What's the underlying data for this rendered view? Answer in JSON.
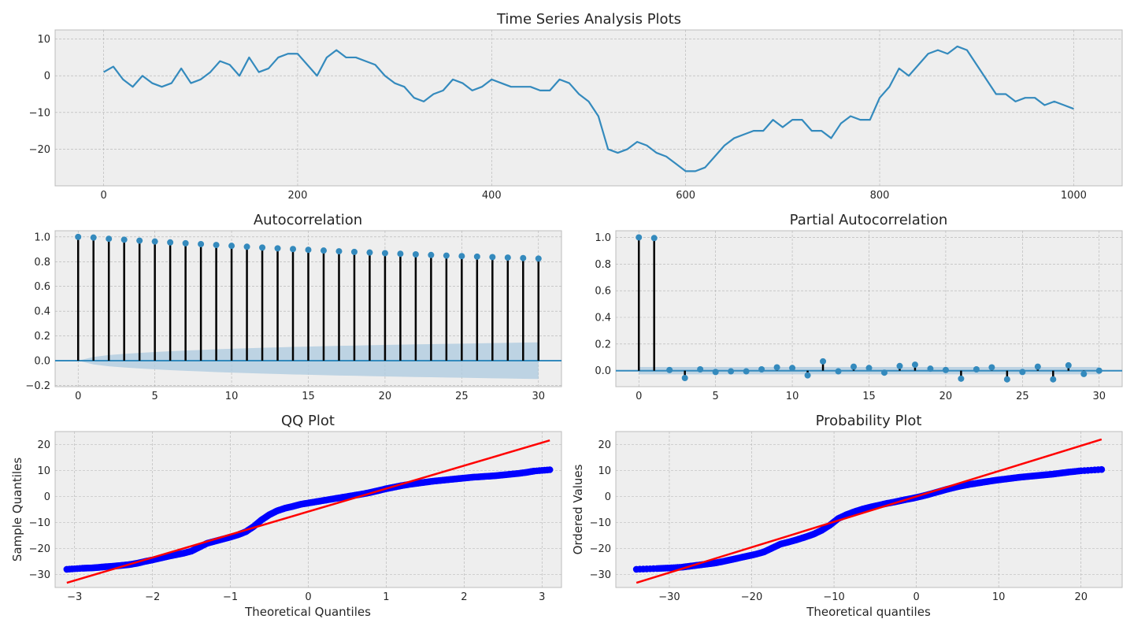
{
  "figure_title": "Time Series Analysis Plots",
  "chart_data": [
    {
      "id": "ts",
      "type": "line",
      "title": "",
      "xlabel": "",
      "ylabel": "",
      "xlim": [
        -50,
        1050
      ],
      "ylim": [
        -30,
        12.5
      ],
      "xticks": [
        0,
        200,
        400,
        600,
        800,
        1000
      ],
      "yticks": [
        -20,
        -10,
        0,
        10
      ],
      "grid": true,
      "color": "#348abd",
      "series": [
        {
          "x": [
            0,
            10,
            20,
            30,
            40,
            50,
            60,
            70,
            80,
            90,
            100,
            110,
            120,
            130,
            140,
            150,
            160,
            170,
            180,
            190,
            200,
            210,
            220,
            230,
            240,
            250,
            260,
            270,
            280,
            290,
            300,
            310,
            320,
            330,
            340,
            350,
            360,
            370,
            380,
            390,
            400,
            410,
            420,
            430,
            440,
            450,
            460,
            470,
            480,
            490,
            500,
            510,
            520,
            530,
            540,
            550,
            560,
            570,
            580,
            590,
            600,
            610,
            620,
            630,
            640,
            650,
            660,
            670,
            680,
            690,
            700,
            710,
            720,
            730,
            740,
            750,
            760,
            770,
            780,
            790,
            800,
            810,
            820,
            830,
            840,
            850,
            860,
            870,
            880,
            890,
            900,
            910,
            920,
            930,
            940,
            950,
            960,
            970,
            980,
            990,
            1000
          ],
          "y": [
            1,
            2.5,
            -1,
            -3,
            0,
            -2,
            -3,
            -2,
            2,
            -2,
            -1,
            1,
            4,
            3,
            0,
            5,
            1,
            2,
            5,
            6,
            6,
            3,
            0,
            5,
            7,
            5,
            5,
            4,
            3,
            0,
            -2,
            -3,
            -6,
            -7,
            -5,
            -4,
            -1,
            -2,
            -4,
            -3,
            -1,
            -2,
            -3,
            -3,
            -3,
            -4,
            -4,
            -1,
            -2,
            -5,
            -7,
            -11,
            -20,
            -21,
            -20,
            -18,
            -19,
            -21,
            -22,
            -24,
            -26,
            -26,
            -25,
            -22,
            -19,
            -17,
            -16,
            -15,
            -15,
            -12,
            -14,
            -12,
            -12,
            -15,
            -15,
            -17,
            -13,
            -11,
            -12,
            -12,
            -6,
            -3,
            2,
            0,
            3,
            6,
            7,
            6,
            8,
            7,
            3,
            -1,
            -5,
            -5,
            -7,
            -6,
            -6,
            -8,
            -7,
            -8,
            -9
          ]
        }
      ]
    },
    {
      "id": "acf",
      "type": "stem",
      "title": "Autocorrelation",
      "xlabel": "",
      "ylabel": "",
      "xlim": [
        -1.5,
        31.5
      ],
      "ylim": [
        -0.21,
        1.05
      ],
      "xticks": [
        0,
        5,
        10,
        15,
        20,
        25,
        30
      ],
      "yticks": [
        -0.2,
        0.0,
        0.2,
        0.4,
        0.6,
        0.8,
        1.0
      ],
      "ytick_labels": [
        "−0.2",
        "0.0",
        "0.2",
        "0.4",
        "0.6",
        "0.8",
        "1.0"
      ],
      "grid": true,
      "color": "#348abd",
      "band_color": "#b0cce0",
      "series": [
        {
          "x": [
            0,
            1,
            2,
            3,
            4,
            5,
            6,
            7,
            8,
            9,
            10,
            11,
            12,
            13,
            14,
            15,
            16,
            17,
            18,
            19,
            20,
            21,
            22,
            23,
            24,
            25,
            26,
            27,
            28,
            29,
            30
          ],
          "y": [
            1.0,
            0.995,
            0.985,
            0.978,
            0.97,
            0.963,
            0.956,
            0.949,
            0.942,
            0.935,
            0.928,
            0.921,
            0.914,
            0.908,
            0.902,
            0.896,
            0.89,
            0.884,
            0.879,
            0.874,
            0.869,
            0.864,
            0.859,
            0.854,
            0.849,
            0.845,
            0.841,
            0.837,
            0.833,
            0.829,
            0.825
          ]
        }
      ],
      "confidence_band": {
        "x": [
          0,
          1,
          2,
          3,
          4,
          5,
          6,
          7,
          8,
          9,
          10,
          11,
          12,
          13,
          14,
          15,
          16,
          17,
          18,
          19,
          20,
          21,
          22,
          23,
          24,
          25,
          26,
          27,
          28,
          29,
          30
        ],
        "half_width": [
          0,
          0.03,
          0.045,
          0.055,
          0.063,
          0.07,
          0.076,
          0.082,
          0.087,
          0.092,
          0.096,
          0.1,
          0.104,
          0.107,
          0.111,
          0.114,
          0.117,
          0.12,
          0.122,
          0.125,
          0.127,
          0.13,
          0.132,
          0.134,
          0.136,
          0.138,
          0.14,
          0.142,
          0.144,
          0.146,
          0.148
        ]
      }
    },
    {
      "id": "pacf",
      "type": "stem",
      "title": "Partial Autocorrelation",
      "xlabel": "",
      "ylabel": "",
      "xlim": [
        -1.5,
        31.5
      ],
      "ylim": [
        -0.12,
        1.05
      ],
      "xticks": [
        0,
        5,
        10,
        15,
        20,
        25,
        30
      ],
      "yticks": [
        0.0,
        0.2,
        0.4,
        0.6,
        0.8,
        1.0
      ],
      "ytick_labels": [
        "0.0",
        "0.2",
        "0.4",
        "0.6",
        "0.8",
        "1.0"
      ],
      "grid": true,
      "color": "#348abd",
      "band_color": "#b0cce0",
      "series": [
        {
          "x": [
            0,
            1,
            2,
            3,
            4,
            5,
            6,
            7,
            8,
            9,
            10,
            11,
            12,
            13,
            14,
            15,
            16,
            17,
            18,
            19,
            20,
            21,
            22,
            23,
            24,
            25,
            26,
            27,
            28,
            29,
            30
          ],
          "y": [
            1.0,
            0.995,
            0.005,
            -0.055,
            0.01,
            -0.01,
            -0.005,
            -0.005,
            0.01,
            0.025,
            0.02,
            -0.035,
            0.07,
            -0.005,
            0.03,
            0.02,
            -0.015,
            0.035,
            0.045,
            0.015,
            0.005,
            -0.06,
            0.01,
            0.025,
            -0.065,
            -0.01,
            0.03,
            -0.065,
            0.04,
            -0.025,
            0.0
          ]
        }
      ],
      "confidence_band": {
        "x": [
          0,
          30
        ],
        "half_width": [
          0.028,
          0.028
        ]
      }
    },
    {
      "id": "qq",
      "type": "scatter",
      "title": "QQ Plot",
      "xlabel": "Theoretical Quantiles",
      "ylabel": "Sample Quantiles",
      "xlim": [
        -3.25,
        3.25
      ],
      "ylim": [
        -35,
        25
      ],
      "xticks": [
        -3,
        -2,
        -1,
        0,
        1,
        2,
        3
      ],
      "xtick_labels": [
        "−3",
        "−2",
        "−1",
        "0",
        "1",
        "2",
        "3"
      ],
      "yticks": [
        -30,
        -20,
        -10,
        0,
        10,
        20
      ],
      "ytick_labels": [
        "−30",
        "−20",
        "−10",
        "0",
        "10",
        "20"
      ],
      "grid": true,
      "point_color": "#0000ff",
      "line_color": "#ff0000",
      "fit_line": {
        "x": [
          -3.1,
          3.1
        ],
        "y": [
          -33.2,
          21.6
        ]
      },
      "series": [
        {
          "x": [
            -3.1,
            -2.9,
            -2.8,
            -2.7,
            -2.6,
            -2.5,
            -2.4,
            -2.3,
            -2.2,
            -2.1,
            -2.0,
            -1.9,
            -1.8,
            -1.7,
            -1.6,
            -1.5,
            -1.4,
            -1.3,
            -1.2,
            -1.1,
            -1.0,
            -0.9,
            -0.8,
            -0.7,
            -0.6,
            -0.5,
            -0.4,
            -0.3,
            -0.2,
            -0.1,
            0.0,
            0.1,
            0.2,
            0.3,
            0.4,
            0.5,
            0.6,
            0.7,
            0.8,
            0.9,
            1.0,
            1.1,
            1.2,
            1.3,
            1.4,
            1.5,
            1.6,
            1.7,
            1.8,
            1.9,
            2.0,
            2.1,
            2.2,
            2.3,
            2.4,
            2.5,
            2.6,
            2.7,
            2.8,
            2.9,
            3.1
          ],
          "y": [
            -28.0,
            -27.6,
            -27.5,
            -27.3,
            -27.0,
            -26.8,
            -26.5,
            -26.2,
            -25.7,
            -25.0,
            -24.4,
            -23.7,
            -23.0,
            -22.4,
            -21.8,
            -21.0,
            -19.5,
            -18.0,
            -17.2,
            -16.4,
            -15.6,
            -14.7,
            -13.5,
            -11.5,
            -9.0,
            -7.0,
            -5.5,
            -4.5,
            -3.8,
            -3.0,
            -2.5,
            -2.0,
            -1.5,
            -1.0,
            -0.5,
            0.0,
            0.5,
            1.0,
            1.6,
            2.3,
            3.0,
            3.6,
            4.2,
            4.7,
            5.1,
            5.5,
            5.9,
            6.2,
            6.5,
            6.8,
            7.1,
            7.4,
            7.6,
            7.8,
            8.0,
            8.3,
            8.6,
            8.9,
            9.3,
            9.8,
            10.3
          ]
        }
      ]
    },
    {
      "id": "prob",
      "type": "scatter",
      "title": "Probability Plot",
      "xlabel": "Theoretical quantiles",
      "ylabel": "Ordered Values",
      "xlim": [
        -36.5,
        25
      ],
      "ylim": [
        -35,
        25
      ],
      "xticks": [
        -30,
        -20,
        -10,
        0,
        10,
        20
      ],
      "xtick_labels": [
        "−30",
        "−20",
        "−10",
        "0",
        "10",
        "20"
      ],
      "yticks": [
        -30,
        -20,
        -10,
        0,
        10,
        20
      ],
      "ytick_labels": [
        "−30",
        "−20",
        "−10",
        "0",
        "10",
        "20"
      ],
      "grid": true,
      "point_color": "#0000ff",
      "line_color": "#ff0000",
      "fit_line": {
        "x": [
          -34,
          22.5
        ],
        "y": [
          -33.2,
          22.0
        ]
      },
      "series": [
        {
          "x": [
            -34.0,
            -31.5,
            -30.0,
            -28.5,
            -27.5,
            -26.5,
            -25.5,
            -24.5,
            -23.5,
            -22.5,
            -21.5,
            -20.5,
            -19.5,
            -18.5,
            -17.5,
            -16.5,
            -15.5,
            -14.5,
            -13.5,
            -12.5,
            -11.5,
            -10.5,
            -9.5,
            -8.5,
            -7.5,
            -6.5,
            -5.5,
            -4.5,
            -3.5,
            -2.5,
            -1.5,
            -0.5,
            0.5,
            1.5,
            2.5,
            3.5,
            4.5,
            5.5,
            6.5,
            7.5,
            8.5,
            9.5,
            10.5,
            11.5,
            12.5,
            13.5,
            14.5,
            15.5,
            16.5,
            17.5,
            18.5,
            20.0,
            22.5
          ],
          "y": [
            -28.0,
            -27.7,
            -27.5,
            -27.2,
            -26.8,
            -26.4,
            -26.0,
            -25.6,
            -25.0,
            -24.3,
            -23.6,
            -22.9,
            -22.2,
            -21.3,
            -19.8,
            -18.3,
            -17.5,
            -16.6,
            -15.6,
            -14.5,
            -13.0,
            -11.0,
            -8.5,
            -7.0,
            -5.8,
            -4.8,
            -4.0,
            -3.3,
            -2.6,
            -2.0,
            -1.3,
            -0.7,
            0.0,
            0.8,
            1.7,
            2.6,
            3.4,
            4.1,
            4.7,
            5.2,
            5.7,
            6.2,
            6.6,
            7.0,
            7.4,
            7.7,
            8.0,
            8.3,
            8.6,
            9.0,
            9.4,
            9.9,
            10.4
          ]
        }
      ]
    }
  ]
}
